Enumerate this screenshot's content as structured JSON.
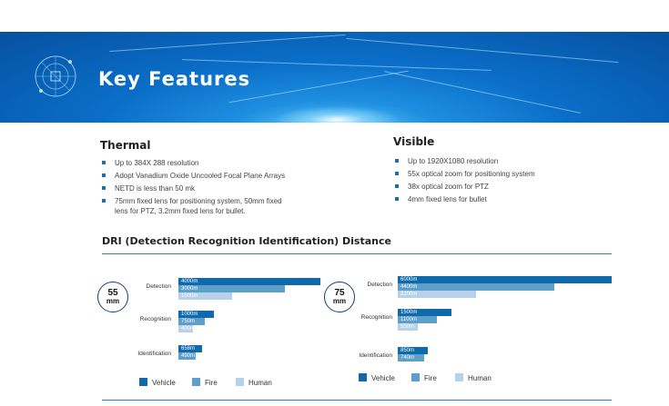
{
  "banner": {
    "title": "Key Features"
  },
  "thermal": {
    "title": "Thermal",
    "items": [
      "Up to 384X 288 resolution",
      "Adopt Vanadium Oxide Uncooled Focal Plane Arrays",
      "NETD is less than 50 mk",
      "75mm fixed lens for positioning system, 50mm fixed lens for PTZ, 3.2mm fixed lens for bullet."
    ]
  },
  "visible": {
    "title": "Visible",
    "items": [
      "Up to 1920X1080 resolution",
      "55x optical zoom for positioning system",
      "38x optical zoom for PTZ",
      "4mm fixed lens for bullet"
    ]
  },
  "dri": {
    "title": "DRI (Detection Recognition Identification) Distance"
  },
  "chart_data": [
    {
      "type": "bar",
      "lens": "55 mm",
      "categories": [
        "Detection",
        "Recognition",
        "Identification"
      ],
      "series": [
        {
          "name": "Vehicle",
          "color": "#0f6aac",
          "values": [
            4000,
            1000,
            658
          ],
          "labels": [
            "4000m",
            "1000m",
            "658m"
          ]
        },
        {
          "name": "Fire",
          "color": "#5e9ecb",
          "values": [
            3000,
            750,
            490
          ],
          "labels": [
            "3000m",
            "750m",
            "490m"
          ]
        },
        {
          "name": "Human",
          "color": "#b6d2ea",
          "values": [
            1500,
            400,
            null
          ],
          "labels": [
            "1500m",
            "400m",
            ""
          ]
        }
      ],
      "xlim": [
        0,
        4000
      ],
      "legend": "bottom"
    },
    {
      "type": "bar",
      "lens": "75 mm",
      "categories": [
        "Detection",
        "Recognition",
        "Identification"
      ],
      "series": [
        {
          "name": "Vehicle",
          "color": "#0f6aac",
          "values": [
            6000,
            1500,
            850
          ],
          "labels": [
            "6000m",
            "1500m",
            "850m"
          ]
        },
        {
          "name": "Fire",
          "color": "#5e9ecb",
          "values": [
            4400,
            1100,
            740
          ],
          "labels": [
            "4400m",
            "1100m",
            "740m"
          ]
        },
        {
          "name": "Human",
          "color": "#b6d2ea",
          "values": [
            2200,
            550,
            null
          ],
          "labels": [
            "2200m",
            "550m",
            ""
          ]
        }
      ],
      "xlim": [
        0,
        6000
      ],
      "legend": "bottom"
    }
  ]
}
